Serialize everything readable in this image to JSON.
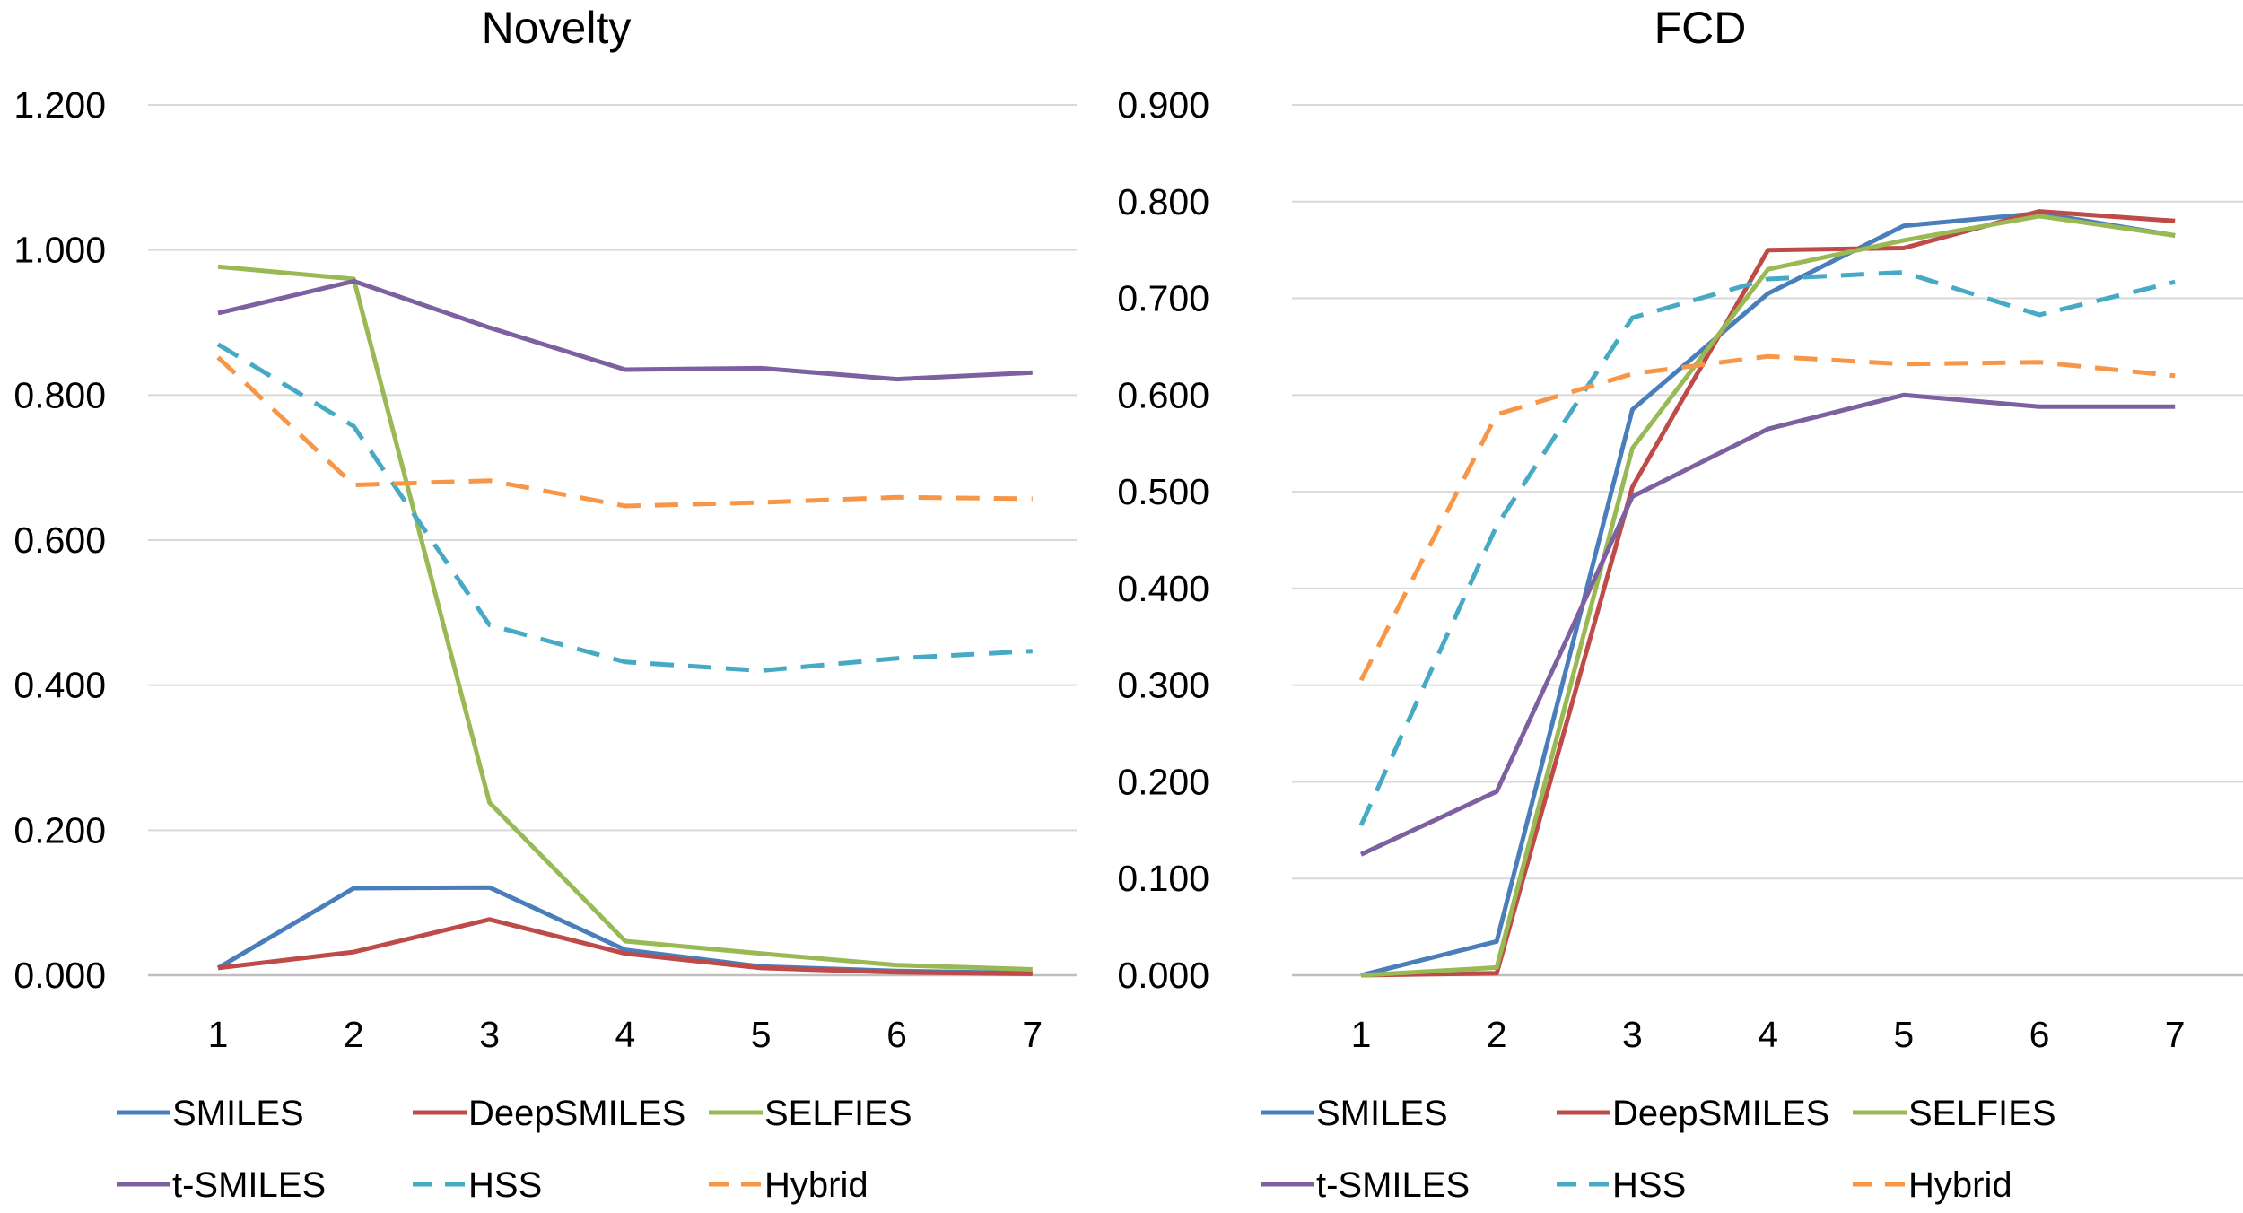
{
  "chart_data": [
    {
      "type": "line",
      "title": "Novelty",
      "x": [
        1,
        2,
        3,
        4,
        5,
        6,
        7
      ],
      "xticks": [
        "1",
        "2",
        "3",
        "4",
        "5",
        "6",
        "7"
      ],
      "ylim": [
        0,
        1.2
      ],
      "yticks": [
        "0.000",
        "0.200",
        "0.400",
        "0.600",
        "0.800",
        "1.000",
        "1.200"
      ],
      "grid": true,
      "legend_position": "bottom",
      "series": [
        {
          "name": "SMILES",
          "color": "#4a7ebb",
          "dash": "solid",
          "values": [
            0.01,
            0.12,
            0.121,
            0.035,
            0.012,
            0.006,
            0.003
          ]
        },
        {
          "name": "DeepSMILES",
          "color": "#be4b48",
          "dash": "solid",
          "values": [
            0.01,
            0.032,
            0.077,
            0.03,
            0.01,
            0.004,
            0.002
          ]
        },
        {
          "name": "SELFIES",
          "color": "#98b954",
          "dash": "solid",
          "values": [
            0.977,
            0.96,
            0.238,
            0.047,
            0.03,
            0.014,
            0.008
          ]
        },
        {
          "name": "t-SMILES",
          "color": "#7d60a0",
          "dash": "solid",
          "values": [
            0.913,
            0.957,
            0.893,
            0.835,
            0.837,
            0.822,
            0.831
          ]
        },
        {
          "name": "HSS",
          "color": "#46aac5",
          "dash": "dashed",
          "values": [
            0.87,
            0.757,
            0.483,
            0.432,
            0.42,
            0.437,
            0.447
          ]
        },
        {
          "name": "Hybrid",
          "color": "#f79646",
          "dash": "dashed",
          "values": [
            0.852,
            0.676,
            0.682,
            0.647,
            0.652,
            0.659,
            0.657
          ]
        }
      ]
    },
    {
      "type": "line",
      "title": "FCD",
      "x": [
        1,
        2,
        3,
        4,
        5,
        6,
        7
      ],
      "xticks": [
        "1",
        "2",
        "3",
        "4",
        "5",
        "6",
        "7"
      ],
      "ylim": [
        0,
        0.9
      ],
      "yticks": [
        "0.000",
        "0.100",
        "0.200",
        "0.300",
        "0.400",
        "0.500",
        "0.600",
        "0.700",
        "0.800",
        "0.900"
      ],
      "grid": true,
      "legend_position": "bottom",
      "series": [
        {
          "name": "SMILES",
          "color": "#4a7ebb",
          "dash": "solid",
          "values": [
            0.0,
            0.035,
            0.585,
            0.705,
            0.775,
            0.788,
            0.765
          ]
        },
        {
          "name": "DeepSMILES",
          "color": "#be4b48",
          "dash": "solid",
          "values": [
            0.0,
            0.002,
            0.505,
            0.75,
            0.752,
            0.79,
            0.78
          ]
        },
        {
          "name": "SELFIES",
          "color": "#98b954",
          "dash": "solid",
          "values": [
            0.0,
            0.008,
            0.545,
            0.73,
            0.76,
            0.785,
            0.765
          ]
        },
        {
          "name": "t-SMILES",
          "color": "#7d60a0",
          "dash": "solid",
          "values": [
            0.125,
            0.19,
            0.495,
            0.565,
            0.6,
            0.588,
            0.588
          ]
        },
        {
          "name": "HSS",
          "color": "#46aac5",
          "dash": "dashed",
          "values": [
            0.155,
            0.465,
            0.68,
            0.72,
            0.727,
            0.683,
            0.717
          ]
        },
        {
          "name": "Hybrid",
          "color": "#f79646",
          "dash": "dashed",
          "values": [
            0.305,
            0.58,
            0.622,
            0.64,
            0.632,
            0.634,
            0.62
          ]
        }
      ]
    }
  ]
}
